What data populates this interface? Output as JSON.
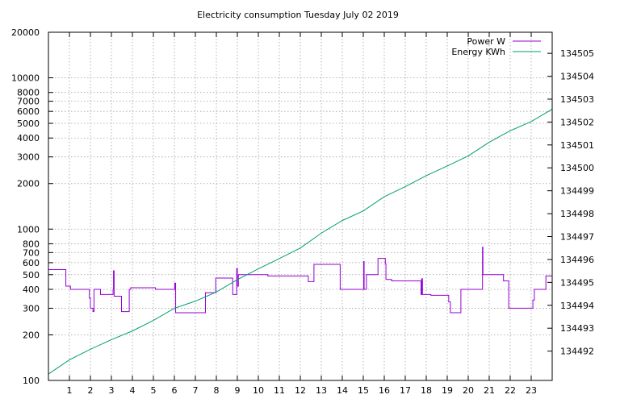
{
  "chart_data": {
    "type": "line",
    "title": "Electricity consumption Tuesday July 02 2019",
    "xlabel": "",
    "xlim": [
      0,
      24
    ],
    "x_ticks": [
      1,
      2,
      3,
      4,
      5,
      6,
      7,
      8,
      9,
      10,
      11,
      12,
      13,
      14,
      15,
      16,
      17,
      18,
      19,
      20,
      21,
      22,
      23
    ],
    "y_left": {
      "label": "",
      "scale": "log",
      "lim": [
        100,
        20000
      ],
      "ticks": [
        100,
        200,
        300,
        400,
        500,
        600,
        700,
        800,
        1000,
        2000,
        3000,
        4000,
        5000,
        6000,
        7000,
        8000,
        10000,
        20000
      ]
    },
    "y_right": {
      "label": "",
      "scale": "log",
      "lim": [
        134490.72,
        134505.92
      ],
      "ticks": [
        134492,
        134493,
        134494,
        134495,
        134496,
        134497,
        134498,
        134499,
        134500,
        134501,
        134502,
        134503,
        134504,
        134505
      ]
    },
    "grid": true,
    "legend_position": "top-right",
    "series": [
      {
        "name": "Power W",
        "axis": "left",
        "color": "#9400d3",
        "points": [
          [
            0.0,
            540
          ],
          [
            0.83,
            540
          ],
          [
            0.83,
            420
          ],
          [
            1.05,
            420
          ],
          [
            1.05,
            400
          ],
          [
            1.95,
            400
          ],
          [
            1.95,
            350
          ],
          [
            2.0,
            350
          ],
          [
            2.0,
            300
          ],
          [
            2.12,
            300
          ],
          [
            2.12,
            285
          ],
          [
            2.17,
            285
          ],
          [
            2.17,
            400
          ],
          [
            2.48,
            400
          ],
          [
            2.48,
            370
          ],
          [
            3.08,
            370
          ],
          [
            3.08,
            400
          ],
          [
            3.1,
            400
          ],
          [
            3.1,
            530
          ],
          [
            3.13,
            530
          ],
          [
            3.13,
            360
          ],
          [
            3.48,
            360
          ],
          [
            3.48,
            285
          ],
          [
            3.85,
            285
          ],
          [
            3.85,
            400
          ],
          [
            3.92,
            400
          ],
          [
            3.92,
            410
          ],
          [
            5.1,
            410
          ],
          [
            5.1,
            400
          ],
          [
            6.02,
            400
          ],
          [
            6.02,
            440
          ],
          [
            6.06,
            440
          ],
          [
            6.06,
            280
          ],
          [
            7.48,
            280
          ],
          [
            7.48,
            380
          ],
          [
            7.97,
            380
          ],
          [
            7.97,
            475
          ],
          [
            8.78,
            475
          ],
          [
            8.78,
            370
          ],
          [
            8.97,
            370
          ],
          [
            8.97,
            550
          ],
          [
            9.0,
            550
          ],
          [
            9.0,
            420
          ],
          [
            9.05,
            420
          ],
          [
            9.05,
            500
          ],
          [
            10.45,
            500
          ],
          [
            10.45,
            490
          ],
          [
            12.38,
            490
          ],
          [
            12.38,
            450
          ],
          [
            12.65,
            450
          ],
          [
            12.65,
            585
          ],
          [
            13.9,
            585
          ],
          [
            13.9,
            400
          ],
          [
            15.02,
            400
          ],
          [
            15.02,
            610
          ],
          [
            15.04,
            610
          ],
          [
            15.04,
            400
          ],
          [
            15.15,
            400
          ],
          [
            15.15,
            500
          ],
          [
            15.7,
            500
          ],
          [
            15.7,
            640
          ],
          [
            16.05,
            640
          ],
          [
            16.05,
            590
          ],
          [
            16.08,
            590
          ],
          [
            16.08,
            465
          ],
          [
            16.35,
            465
          ],
          [
            16.35,
            455
          ],
          [
            17.75,
            455
          ],
          [
            17.75,
            370
          ],
          [
            17.78,
            370
          ],
          [
            17.78,
            470
          ],
          [
            17.82,
            470
          ],
          [
            17.82,
            370
          ],
          [
            18.22,
            370
          ],
          [
            18.22,
            365
          ],
          [
            19.07,
            365
          ],
          [
            19.07,
            330
          ],
          [
            19.15,
            330
          ],
          [
            19.15,
            280
          ],
          [
            19.65,
            280
          ],
          [
            19.65,
            400
          ],
          [
            20.68,
            400
          ],
          [
            20.68,
            760
          ],
          [
            20.7,
            760
          ],
          [
            20.7,
            500
          ],
          [
            21.68,
            500
          ],
          [
            21.68,
            455
          ],
          [
            21.93,
            455
          ],
          [
            21.93,
            300
          ],
          [
            23.08,
            300
          ],
          [
            23.08,
            340
          ],
          [
            23.15,
            340
          ],
          [
            23.15,
            400
          ],
          [
            23.7,
            400
          ],
          [
            23.7,
            490
          ],
          [
            24.0,
            490
          ]
        ]
      },
      {
        "name": "Energy KWh",
        "axis": "right",
        "color": "#009e73",
        "points": [
          [
            0.0,
            134491.0
          ],
          [
            1.0,
            134491.62
          ],
          [
            2.0,
            134492.08
          ],
          [
            3.0,
            134492.5
          ],
          [
            4.0,
            134492.88
          ],
          [
            5.0,
            134493.34
          ],
          [
            6.0,
            134493.87
          ],
          [
            7.0,
            134494.18
          ],
          [
            8.0,
            134494.58
          ],
          [
            9.0,
            134495.12
          ],
          [
            10.0,
            134495.59
          ],
          [
            11.0,
            134496.04
          ],
          [
            12.0,
            134496.5
          ],
          [
            13.0,
            134497.15
          ],
          [
            14.0,
            134497.7
          ],
          [
            15.0,
            134498.12
          ],
          [
            16.0,
            134498.74
          ],
          [
            17.0,
            134499.18
          ],
          [
            18.0,
            134499.66
          ],
          [
            19.0,
            134500.08
          ],
          [
            20.0,
            134500.52
          ],
          [
            21.0,
            134501.12
          ],
          [
            22.0,
            134501.62
          ],
          [
            23.0,
            134502.02
          ],
          [
            24.0,
            134502.56
          ]
        ]
      }
    ]
  }
}
